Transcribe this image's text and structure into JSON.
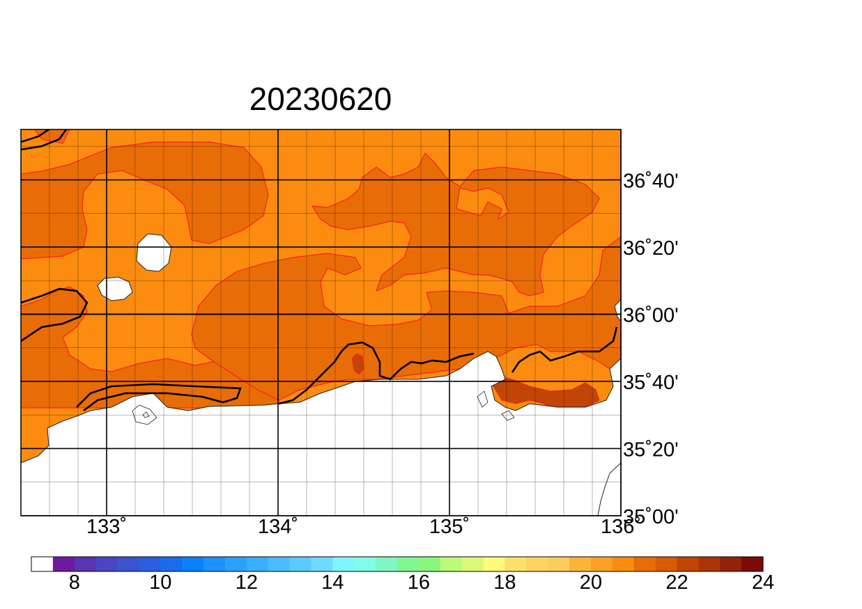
{
  "title": "20230620",
  "map": {
    "lon_range": [
      132.5,
      136.0
    ],
    "lat_range": [
      35.0,
      36.9167
    ],
    "lon_ticks": [
      {
        "value": 133,
        "label": "133˚"
      },
      {
        "value": 134,
        "label": "134˚"
      },
      {
        "value": 135,
        "label": "135˚"
      },
      {
        "value": 136,
        "label": "136˚"
      }
    ],
    "lat_ticks": [
      {
        "value": 36.6667,
        "label": "36˚40'"
      },
      {
        "value": 36.3333,
        "label": "36˚20'"
      },
      {
        "value": 36.0,
        "label": "36˚00'"
      },
      {
        "value": 35.6667,
        "label": "35˚40'"
      },
      {
        "value": 35.3333,
        "label": "35˚20'"
      },
      {
        "value": 35.0,
        "label": "35˚00'"
      }
    ],
    "colors": {
      "field_22_23": "#fb8c0f",
      "field_23_24": "#e86d07",
      "contour_thin": "#ff2020",
      "contour_bold": "#000000",
      "land": "#ffffff"
    }
  },
  "colorbar": {
    "colors": [
      "#ffffff",
      "#6e1aa0",
      "#5735b4",
      "#4a45c2",
      "#3d52cf",
      "#2b5fe0",
      "#1a6cec",
      "#0a80ff",
      "#1f91ff",
      "#2aa1ff",
      "#3aaeff",
      "#4dbcff",
      "#5ccaff",
      "#6fd9ff",
      "#7ff5ff",
      "#80fce8",
      "#7ff7c4",
      "#81f790",
      "#8cf67a",
      "#bcfa7a",
      "#dcf878",
      "#fffa78",
      "#fde06c",
      "#fdd460",
      "#fccc5c",
      "#fab538",
      "#fba024",
      "#fb8c0f",
      "#e86d07",
      "#d95a05",
      "#c04506",
      "#aa3406",
      "#932209",
      "#7c0a05"
    ],
    "labels": [
      {
        "value": 8,
        "text": "8"
      },
      {
        "value": 10,
        "text": "10"
      },
      {
        "value": 12,
        "text": "12"
      },
      {
        "value": 14,
        "text": "14"
      },
      {
        "value": 16,
        "text": "16"
      },
      {
        "value": 18,
        "text": "18"
      },
      {
        "value": 20,
        "text": "20"
      },
      {
        "value": 22,
        "text": "22"
      },
      {
        "value": 24,
        "text": "24"
      }
    ]
  }
}
